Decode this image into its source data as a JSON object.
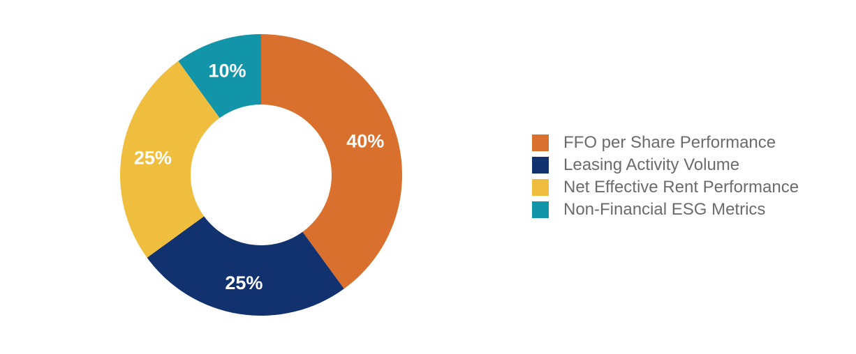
{
  "chart_data": {
    "type": "pie",
    "subtype": "donut",
    "start_angle_deg": 0,
    "direction": "clockwise",
    "inner_radius_fraction": 0.5,
    "legend_position": "right",
    "label_color": "#ffffff",
    "legend_text_color": "#6b6b6b",
    "background_color": "#ffffff",
    "slices": [
      {
        "label": "FFO per Share Performance",
        "value": 40,
        "display": "40%",
        "color": "#D9702E"
      },
      {
        "label": "Leasing Activity Volume",
        "value": 25,
        "display": "25%",
        "color": "#12316F"
      },
      {
        "label": "Net Effective Rent Performance",
        "value": 25,
        "display": "25%",
        "color": "#F0BE3F"
      },
      {
        "label": "Non-Financial ESG Metrics",
        "value": 10,
        "display": "10%",
        "color": "#1295A9"
      }
    ]
  }
}
